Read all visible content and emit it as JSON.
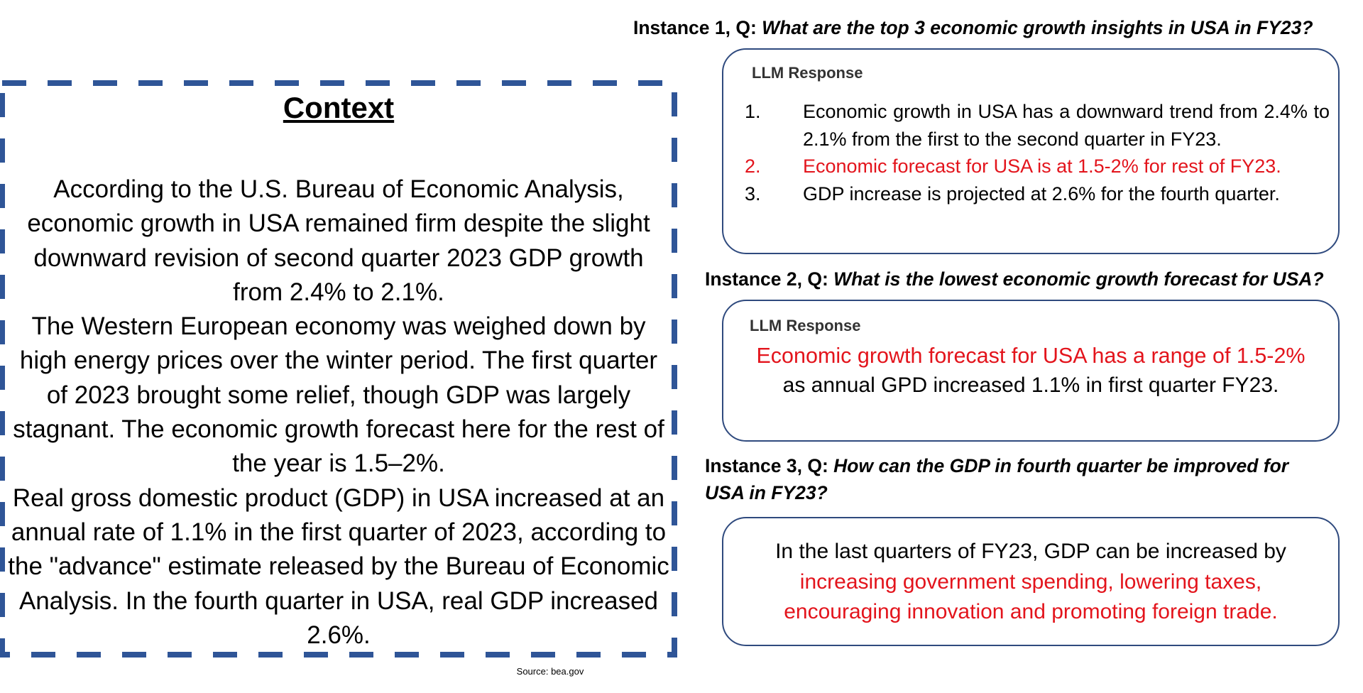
{
  "context": {
    "title": "Context",
    "paragraphs": [
      "According to the U.S. Bureau of Economic Analysis, economic growth in USA remained firm despite the slight downward revision of second quarter 2023 GDP growth from 2.4% to 2.1%.",
      "The Western European economy was weighed down by high energy prices over the winter period. The first quarter of 2023 brought some relief, though GDP was largely stagnant. The economic growth forecast here for the rest of the year is 1.5–2%.",
      "Real gross domestic product (GDP) in USA increased at an annual rate of 1.1% in the first quarter of 2023, according to the \"advance\" estimate released by the Bureau of Economic Analysis. In the fourth quarter in USA, real GDP increased 2.6%."
    ],
    "source": "Source: bea.gov",
    "border_color": "#2f5597"
  },
  "instances": [
    {
      "label": "Instance 1, Q:",
      "question": "What are the top 3 economic growth insights in USA in FY23?",
      "response_header": "LLM Response",
      "items": [
        {
          "number": "1.",
          "text": "Economic growth in USA has a downward trend from 2.4% to 2.1% from the first to the second quarter in FY23.",
          "highlight": false
        },
        {
          "number": "2.",
          "text": "Economic forecast for USA is at 1.5-2% for rest of FY23.",
          "highlight": true
        },
        {
          "number": "3.",
          "text": "GDP increase is projected at 2.6% for the fourth quarter.",
          "highlight": false
        }
      ]
    },
    {
      "label": "Instance 2, Q:",
      "question": "What is the lowest economic growth forecast for USA?",
      "response_header": "LLM Response",
      "response_highlight": "Economic growth forecast for USA has a range of 1.5-2%",
      "response_rest": "as annual GPD increased 1.1% in first quarter FY23."
    },
    {
      "label": "Instance 3, Q:",
      "question_line1": "How can the GDP in fourth quarter be improved for",
      "question_line2": "USA in FY23?",
      "response_plain": "In the last quarters of FY23, GDP can be increased by",
      "response_highlight_1": "increasing government spending, lowering taxes,",
      "response_highlight_2": "encouraging innovation and promoting foreign trade."
    }
  ],
  "colors": {
    "highlight_red": "#e3141c",
    "box_border": "#2f4a7e",
    "dash_border": "#2f5597"
  }
}
